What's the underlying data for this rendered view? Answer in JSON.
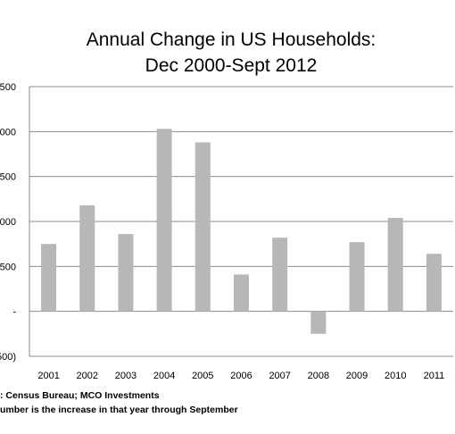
{
  "chart_data": {
    "type": "bar",
    "title": [
      "Annual Change in US Households:",
      "Dec 2000-Sept 2012"
    ],
    "categories": [
      "2001",
      "2002",
      "2003",
      "2004",
      "2005",
      "2006",
      "2007",
      "2008",
      "2009",
      "2010",
      "2011"
    ],
    "values": [
      750,
      1180,
      860,
      2030,
      1880,
      410,
      820,
      -250,
      770,
      1040,
      640
    ],
    "ytick_labels": [
      ",500",
      ",000",
      ",500",
      ",000",
      "500",
      "-",
      "(500)"
    ],
    "ylim": [
      -500,
      2500
    ],
    "grid": true,
    "bar_color": "#b7b7b7",
    "footnotes": [
      ": Census Bureau; MCO Investments",
      "umber is the increase in that year through September"
    ]
  }
}
